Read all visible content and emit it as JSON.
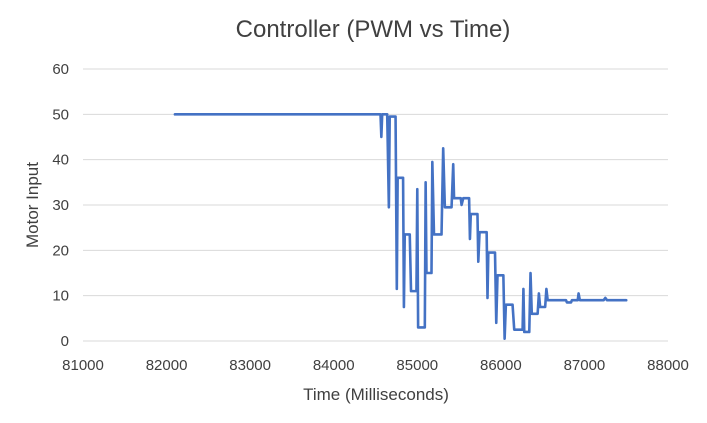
{
  "chart_data": {
    "type": "line",
    "title": "Controller (PWM vs Time)",
    "xlabel": "Time (Milliseconds)",
    "ylabel": "Motor Input",
    "xlim": [
      81000,
      88000
    ],
    "ylim": [
      0,
      60
    ],
    "x_ticks": [
      "81000",
      "82000",
      "83000",
      "84000",
      "85000",
      "86000",
      "87000",
      "88000"
    ],
    "y_ticks": [
      "0",
      "10",
      "20",
      "30",
      "40",
      "50",
      "60"
    ],
    "grid": "horizontal",
    "legend": "none",
    "series": [
      {
        "color": "#4472c4",
        "points": [
          [
            82100,
            50
          ],
          [
            84560,
            50
          ],
          [
            84570,
            45
          ],
          [
            84580,
            50
          ],
          [
            84640,
            50
          ],
          [
            84660,
            29.5
          ],
          [
            84670,
            49.5
          ],
          [
            84740,
            49.5
          ],
          [
            84755,
            11.5
          ],
          [
            84765,
            36
          ],
          [
            84830,
            36
          ],
          [
            84840,
            7.5
          ],
          [
            84850,
            23.5
          ],
          [
            84910,
            23.5
          ],
          [
            84925,
            11
          ],
          [
            84990,
            11
          ],
          [
            85000,
            33.5
          ],
          [
            85010,
            3
          ],
          [
            85090,
            3
          ],
          [
            85100,
            35
          ],
          [
            85110,
            15
          ],
          [
            85170,
            15
          ],
          [
            85180,
            39.5
          ],
          [
            85200,
            23.5
          ],
          [
            85290,
            23.5
          ],
          [
            85310,
            42.5
          ],
          [
            85330,
            29.5
          ],
          [
            85410,
            29.5
          ],
          [
            85430,
            39
          ],
          [
            85440,
            31.5
          ],
          [
            85520,
            31.5
          ],
          [
            85530,
            30
          ],
          [
            85550,
            31.5
          ],
          [
            85620,
            31.5
          ],
          [
            85630,
            22.5
          ],
          [
            85640,
            28
          ],
          [
            85720,
            28
          ],
          [
            85730,
            17.5
          ],
          [
            85745,
            24
          ],
          [
            85830,
            24
          ],
          [
            85840,
            9.5
          ],
          [
            85850,
            19.5
          ],
          [
            85930,
            19.5
          ],
          [
            85945,
            4
          ],
          [
            85960,
            14.5
          ],
          [
            86030,
            14.5
          ],
          [
            86045,
            0.5
          ],
          [
            86060,
            8
          ],
          [
            86140,
            8
          ],
          [
            86160,
            2.5
          ],
          [
            86260,
            2.5
          ],
          [
            86270,
            11.5
          ],
          [
            86280,
            2
          ],
          [
            86340,
            2
          ],
          [
            86355,
            15
          ],
          [
            86370,
            6
          ],
          [
            86440,
            6
          ],
          [
            86455,
            10.5
          ],
          [
            86470,
            7.5
          ],
          [
            86530,
            7.5
          ],
          [
            86545,
            11.5
          ],
          [
            86560,
            9
          ],
          [
            86780,
            9
          ],
          [
            86790,
            8.5
          ],
          [
            86840,
            8.5
          ],
          [
            86850,
            9
          ],
          [
            86920,
            9
          ],
          [
            86930,
            10.5
          ],
          [
            86945,
            9
          ],
          [
            87230,
            9
          ],
          [
            87250,
            9.5
          ],
          [
            87270,
            9
          ],
          [
            87500,
            9
          ]
        ]
      }
    ]
  }
}
